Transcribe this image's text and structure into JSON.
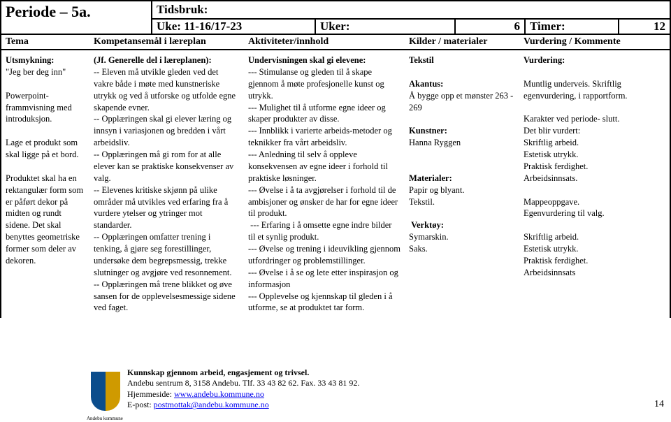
{
  "header": {
    "periode": "Periode – 5a.",
    "tidsbruk_label": "Tidsbruk:",
    "uke_value": "Uke: 11-16/17-23",
    "uker_label": "Uker:",
    "uker_value": "6",
    "timer_label": "Timer:",
    "timer_value": "12"
  },
  "subheader": {
    "tema": "Tema",
    "komp": "Kompetansemål i læreplan",
    "akt": "Aktiviteter/innhold",
    "kil": "Kilder / materialer",
    "vur": "Vurdering / Kommente"
  },
  "col1_html": "<b>Utsmykning:</b><br>\"Jeg ber deg inn\"<br><br>Powerpoint-frammvisning med introduksjon.<br><br>Lage et produkt som skal ligge på et bord.<br><br>Produktet skal ha en rektangulær form som er påført dekor på midten og rundt sidene. Det skal benyttes geometriske former som deler av dekoren.",
  "col2_html": "<b>(Jf. Generelle del i læreplanen):</b><br>-- Eleven må utvikle gleden ved det vakre både i møte med kunstneriske utrykk og ved å utforske og utfolde egne skapende evner.<br>-- Opplæringen skal gi elever læring og innsyn i variasjonen og bredden i vårt arbeidsliv.<br>-- Opplæringen må gi rom for at alle elever kan se praktiske konsekvenser av valg.<br>-- Elevenes kritiske skjønn på ulike områder må utvikles ved erfaring fra å vurdere ytelser og ytringer mot standarder.<br>-- Opplæringen omfatter trening i tenking, å gjøre seg forestillinger, undersøke dem begrepsmessig, trekke slutninger og avgjøre ved resonnement.<br>-- Opplæringen må trene blikket og øve sansen for de opplevelsesmessige sidene ved faget.",
  "col3_html": "<b>Undervisningen skal gi elevene:</b><br>--- Stimulanse og gleden til å skape gjennom å møte profesjonelle kunst og utrykk.<br>--- Mulighet til å utforme egne ideer og skaper produkter av disse.<br>--- Innblikk i varierte arbeids-metoder og teknikker fra vårt arbeidsliv.<br>--- Anledning til selv å oppleve konsekvensen av egne ideer i forhold til praktiske løsninger.<br>--- Øvelse i å ta avgjørelser i forhold til de ambisjoner og ønsker de har for egne ideer til produkt.<br>&nbsp;--- Erfaring i å omsette egne indre bilder til et synlig produkt.<br>--- Øvelse og trening i ideuvikling gjennom utfordringer og problemstillinger.<br>--- Øvelse i å se og lete etter inspirasjon og informasjon<br>--- Opplevelse og kjennskap til gleden i å utforme, se at produktet tar form.",
  "col4_html": "<b>Tekstil</b><br><br><b>Akantus:</b><br>Å bygge opp et mønster 263 - 269<br><br><b>Kunstner:</b><br>Hanna Ryggen<br><br><br><b>Materialer:</b><br>Papir og blyant.<br>Tekstil.<br><br>&nbsp;<b>Verktøy:</b><br>Symarskin.<br>Saks.",
  "col5_html": "<b>Vurdering:</b><br><br>Muntlig underveis. Skriftlig egenvurdering, i rapportform.<br><br>Karakter ved periode- slutt.<br>Det blir vurdert:<br>Skriftlig arbeid.<br>Estetisk utrykk.<br>Praktisk ferdighet.<br>Arbeidsinnsats.<br><br>Mappeoppgave.<br>Egenvurdering til valg.<br><br>Skriftlig arbeid.<br>Estetisk utrykk.<br>Praktisk ferdighet.<br>Arbeidsinnsats",
  "footer": {
    "line1": "Kunnskap gjennom arbeid, engasjement og trivsel.",
    "line2": "Andebu sentrum 8, 3158 Andebu. Tlf. 33 43 82 62. Fax. 33 43 81 92.",
    "line3_label": "Hjemmeside: ",
    "line3_link": "www.andebu.kommune.no",
    "line4_label": "E-post: ",
    "line4_link": "postmottak@andebu.kommune.no",
    "page": "14"
  }
}
